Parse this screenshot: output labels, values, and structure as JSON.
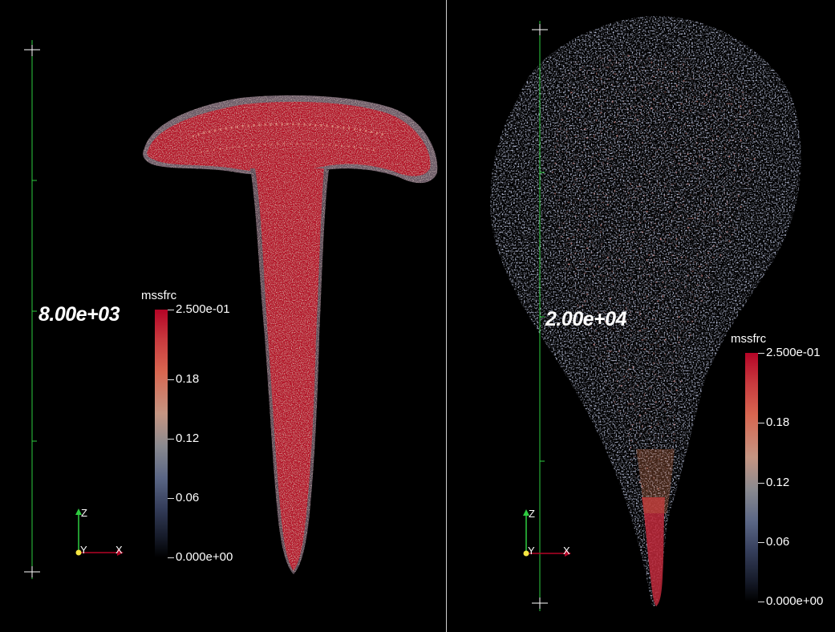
{
  "left_view": {
    "ruler_label": "8.00e+03",
    "colorbar": {
      "title": "mssfrc",
      "max_label": "2.500e-01",
      "min_label": "0.000e+00",
      "ticks": [
        "0.18",
        "0.12",
        "0.06"
      ]
    },
    "axes": {
      "z": "Z",
      "y": "Y",
      "x": "X"
    }
  },
  "right_view": {
    "ruler_label": "2.00e+04",
    "colorbar": {
      "title": "mssfrc",
      "max_label": "2.500e-01",
      "min_label": "0.000e+00",
      "ticks": [
        "0.18",
        "0.12",
        "0.06"
      ]
    },
    "axes": {
      "z": "Z",
      "y": "Y",
      "x": "X"
    }
  },
  "colors": {
    "ruler": "#2ecc40",
    "high": "#b40426",
    "mid": "#8a8a8f",
    "low": "#151a28",
    "divider": "#cfcfcf"
  }
}
